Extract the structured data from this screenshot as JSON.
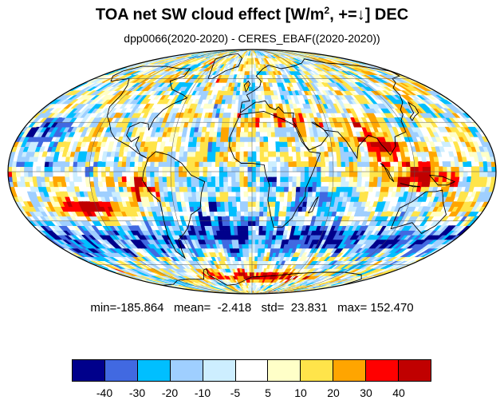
{
  "title": {
    "main": "TOA net SW cloud effect [W/m",
    "sup": "2",
    "rest": ", +=↓]  DEC"
  },
  "subtitle": "dpp0066(2020-2020) - CERES_EBAF((2020-2020))",
  "stats": {
    "text": "min=-185.864   mean=  -2.418   std=  23.831   max= 152.470",
    "min": -185.864,
    "mean": -2.418,
    "std": 23.831,
    "max": 152.47
  },
  "colorbar": {
    "colors": [
      "#00008b",
      "#4169e1",
      "#00bfff",
      "#9fcfff",
      "#cdeeff",
      "#ffffff",
      "#ffffc8",
      "#ffe44a",
      "#ffa500",
      "#ff0000",
      "#c00000"
    ],
    "labels": [
      "-40",
      "-30",
      "-20",
      "-10",
      "-5",
      "5",
      "10",
      "20",
      "30",
      "40"
    ]
  },
  "map": {
    "projection": "mollweide",
    "field": "difference model minus observation"
  }
}
